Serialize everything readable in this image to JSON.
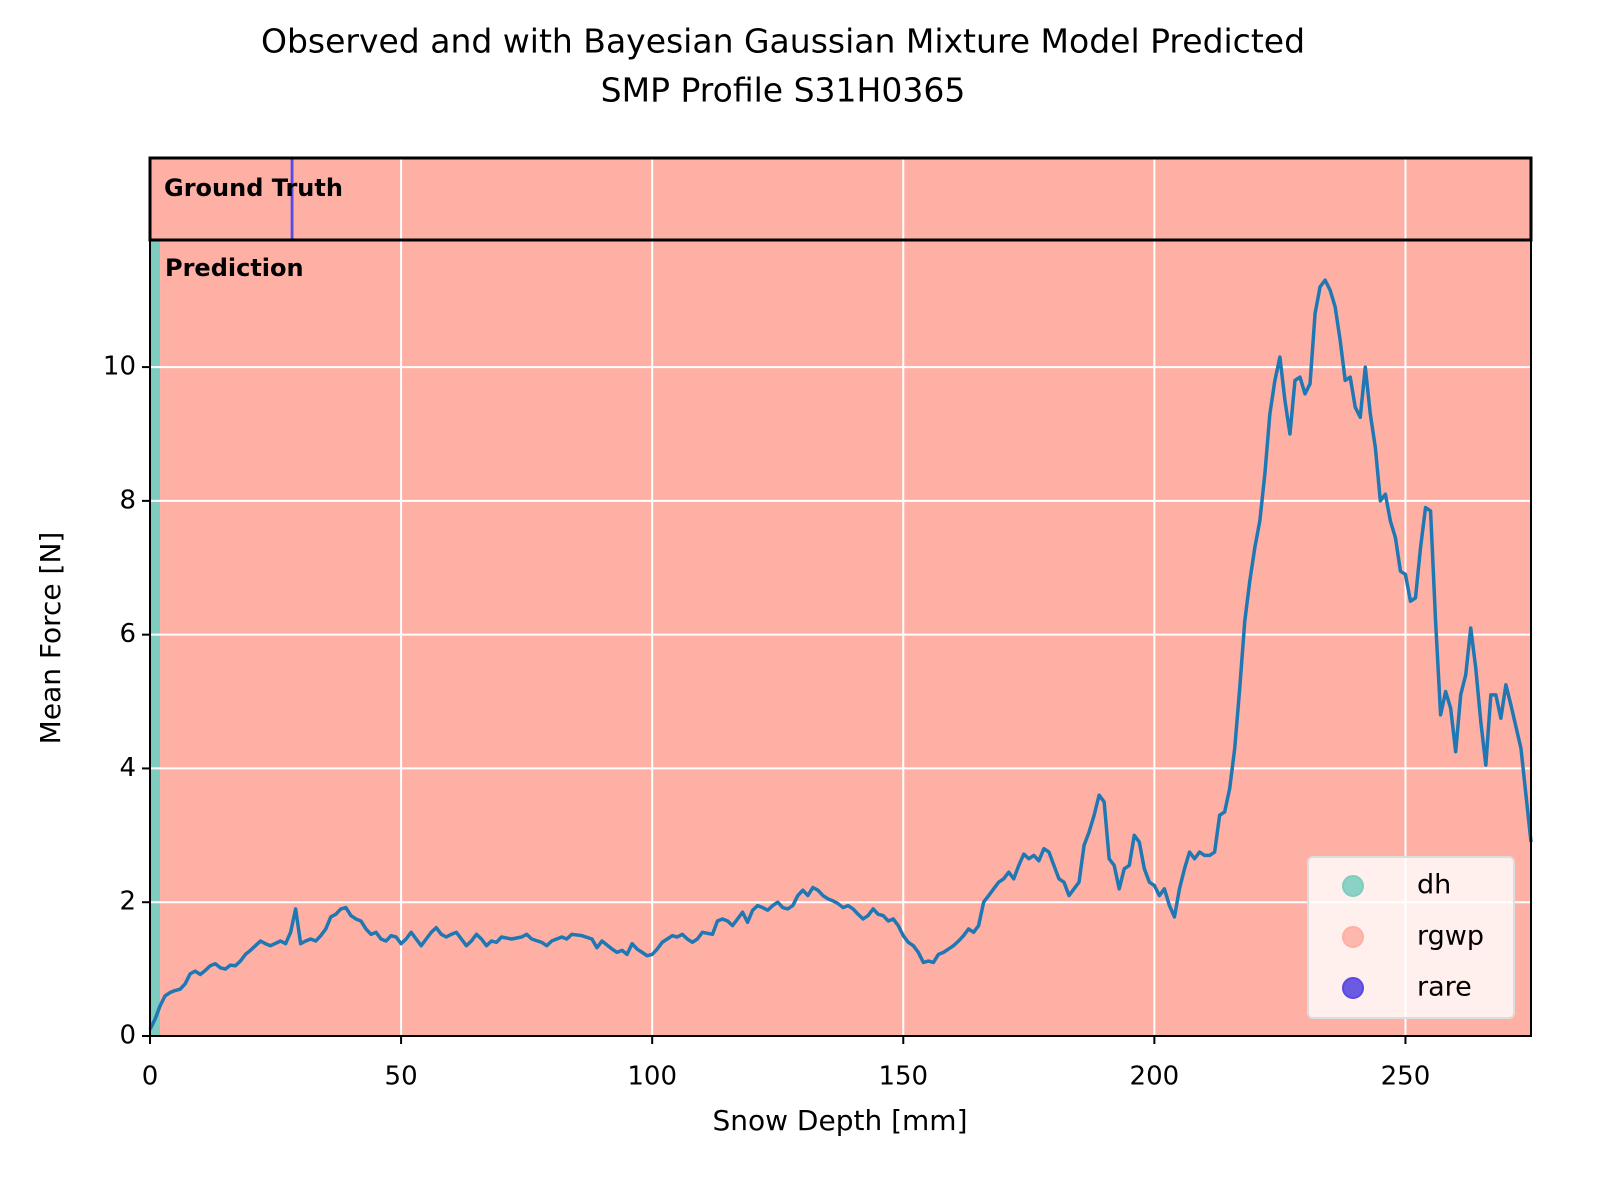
{
  "chart_data": {
    "type": "line",
    "title": [
      "Observed and with Bayesian Gaussian Mixture Model Predicted",
      "SMP Profile S31H0365"
    ],
    "xlabel": "Snow Depth [mm]",
    "ylabel": "Mean Force [N]",
    "xlim": [
      0,
      275
    ],
    "ylim": [
      0,
      11.9
    ],
    "xticks": [
      0,
      50,
      100,
      150,
      200,
      250
    ],
    "yticks": [
      0,
      2,
      4,
      6,
      8,
      10
    ],
    "grid": true,
    "legend": "lower right",
    "classes": [
      {
        "name": "dh",
        "color": "#7fcdc0"
      },
      {
        "name": "rgwp",
        "color": "#feb0a4"
      },
      {
        "name": "rare",
        "color": "#5a4ae0"
      }
    ],
    "ground_truth": {
      "label": "Ground Truth",
      "spans": [
        {
          "class": "rgwp",
          "start": 0,
          "end": 28
        },
        {
          "class": "rare",
          "start": 28,
          "end": 28.6
        },
        {
          "class": "rgwp",
          "start": 28.6,
          "end": 275
        }
      ]
    },
    "prediction": {
      "label": "Prediction",
      "spans": [
        {
          "class": "dh",
          "start": 0,
          "end": 2
        },
        {
          "class": "rgwp",
          "start": 2,
          "end": 275
        }
      ]
    },
    "x": [
      0,
      1,
      2,
      3,
      4,
      5,
      6,
      7,
      8,
      9,
      10,
      11,
      12,
      13,
      14,
      15,
      16,
      17,
      18,
      19,
      20,
      21,
      22,
      23,
      24,
      26,
      27,
      28,
      29,
      30,
      31,
      32,
      33,
      34,
      35,
      36,
      37,
      38,
      39,
      40,
      41,
      42,
      43,
      44,
      45,
      46,
      47,
      48,
      49,
      50,
      51,
      52,
      53,
      54,
      55,
      56,
      57,
      58,
      59,
      60,
      61,
      62,
      63,
      64,
      65,
      66,
      67,
      68,
      69,
      70,
      72,
      74,
      75,
      76,
      78,
      79,
      80,
      82,
      83,
      84,
      86,
      88,
      89,
      90,
      92,
      93,
      94,
      95,
      96,
      97,
      98,
      99,
      100,
      101,
      102,
      103,
      104,
      105,
      106,
      107,
      108,
      109,
      110,
      112,
      113,
      114,
      115,
      116,
      117,
      118,
      119,
      120,
      121,
      122,
      123,
      124,
      125,
      126,
      127,
      128,
      129,
      130,
      131,
      132,
      133,
      134,
      135,
      136,
      137,
      138,
      139,
      140,
      141,
      142,
      143,
      144,
      145,
      146,
      147,
      148,
      149,
      150,
      151,
      152,
      153,
      154,
      155,
      156,
      157,
      158,
      159,
      160,
      161,
      162,
      163,
      164,
      165,
      166,
      167,
      168,
      169,
      170,
      171,
      172,
      173,
      174,
      175,
      176,
      177,
      178,
      179,
      180,
      181,
      182,
      183,
      184,
      185,
      186,
      187,
      188,
      189,
      190,
      191,
      192,
      193,
      194,
      195,
      196,
      197,
      198,
      199,
      200,
      201,
      202,
      203,
      204,
      205,
      206,
      207,
      208,
      209,
      210,
      211,
      212,
      213,
      214,
      215,
      216,
      217,
      218,
      219,
      220,
      221,
      222,
      223,
      224,
      225,
      226,
      227,
      228,
      229,
      230,
      231,
      232,
      233,
      234,
      235,
      236,
      237,
      238,
      239,
      240,
      241,
      242,
      243,
      244,
      245,
      246,
      247,
      248,
      249,
      250,
      251,
      252,
      253,
      254,
      255,
      256,
      257,
      258,
      259,
      260,
      261,
      262,
      263,
      264,
      265,
      266,
      267,
      268,
      269,
      270,
      271,
      273,
      275
    ],
    "series": [
      {
        "color": "#1f77b4",
        "values": [
          0.1,
          0.25,
          0.45,
          0.6,
          0.65,
          0.68,
          0.7,
          0.78,
          0.93,
          0.97,
          0.92,
          0.98,
          1.05,
          1.08,
          1.02,
          1.0,
          1.06,
          1.05,
          1.12,
          1.22,
          1.28,
          1.35,
          1.42,
          1.38,
          1.35,
          1.42,
          1.38,
          1.55,
          1.9,
          1.38,
          1.42,
          1.45,
          1.42,
          1.5,
          1.6,
          1.78,
          1.82,
          1.9,
          1.92,
          1.8,
          1.75,
          1.72,
          1.6,
          1.52,
          1.55,
          1.45,
          1.42,
          1.5,
          1.48,
          1.38,
          1.45,
          1.55,
          1.45,
          1.35,
          1.45,
          1.55,
          1.62,
          1.52,
          1.48,
          1.52,
          1.55,
          1.45,
          1.35,
          1.42,
          1.52,
          1.45,
          1.35,
          1.42,
          1.4,
          1.48,
          1.45,
          1.48,
          1.52,
          1.45,
          1.4,
          1.35,
          1.42,
          1.48,
          1.45,
          1.52,
          1.5,
          1.45,
          1.32,
          1.42,
          1.3,
          1.25,
          1.28,
          1.22,
          1.38,
          1.3,
          1.25,
          1.2,
          1.22,
          1.3,
          1.4,
          1.45,
          1.5,
          1.48,
          1.52,
          1.45,
          1.4,
          1.45,
          1.55,
          1.52,
          1.72,
          1.75,
          1.72,
          1.65,
          1.75,
          1.85,
          1.7,
          1.88,
          1.95,
          1.92,
          1.88,
          1.95,
          2.0,
          1.92,
          1.9,
          1.95,
          2.1,
          2.18,
          2.1,
          2.22,
          2.18,
          2.1,
          2.05,
          2.02,
          1.98,
          1.92,
          1.95,
          1.9,
          1.82,
          1.75,
          1.8,
          1.9,
          1.82,
          1.8,
          1.72,
          1.75,
          1.65,
          1.5,
          1.4,
          1.35,
          1.25,
          1.1,
          1.12,
          1.1,
          1.22,
          1.25,
          1.3,
          1.35,
          1.42,
          1.5,
          1.6,
          1.55,
          1.65,
          2.0,
          2.1,
          2.2,
          2.3,
          2.35,
          2.45,
          2.35,
          2.55,
          2.72,
          2.65,
          2.7,
          2.62,
          2.8,
          2.75,
          2.55,
          2.35,
          2.3,
          2.1,
          2.2,
          2.3,
          2.85,
          3.05,
          3.3,
          3.6,
          3.5,
          2.65,
          2.55,
          2.2,
          2.5,
          2.55,
          3.0,
          2.9,
          2.5,
          2.3,
          2.25,
          2.1,
          2.2,
          1.95,
          1.78,
          2.2,
          2.5,
          2.75,
          2.65,
          2.75,
          2.7,
          2.7,
          2.75,
          3.3,
          3.35,
          3.7,
          4.3,
          5.2,
          6.2,
          6.8,
          7.3,
          7.7,
          8.4,
          9.3,
          9.8,
          10.15,
          9.5,
          9.0,
          9.8,
          9.85,
          9.6,
          9.75,
          10.8,
          11.2,
          11.3,
          11.15,
          10.9,
          10.4,
          9.8,
          9.85,
          9.4,
          9.25,
          10.0,
          9.3,
          8.8,
          8.0,
          8.1,
          7.7,
          7.45,
          6.95,
          6.9,
          6.5,
          6.55,
          7.3,
          7.9,
          7.85,
          6.2,
          4.8,
          5.15,
          4.9,
          4.25,
          5.1,
          5.4,
          6.1,
          5.5,
          4.7,
          4.05,
          5.1,
          5.1,
          4.75,
          5.25,
          4.95,
          4.3,
          2.9
        ]
      }
    ]
  }
}
